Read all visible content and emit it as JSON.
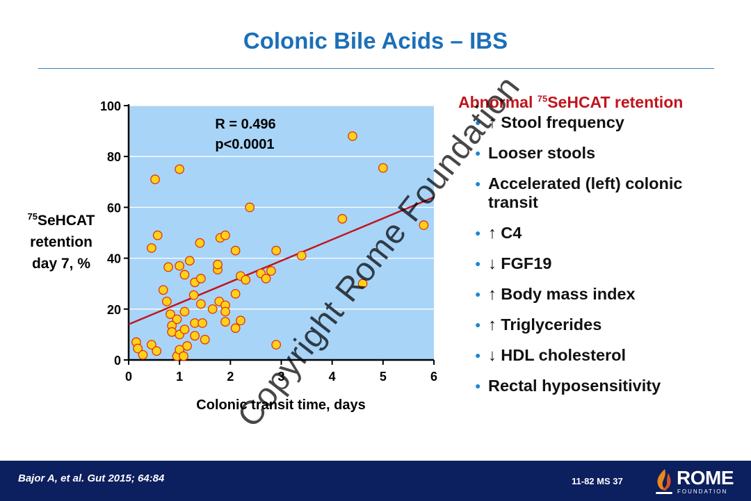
{
  "slide": {
    "title": "Colonic Bile Acids – IBS",
    "side_title_pre": "Abnormal ",
    "side_title_sup": "75",
    "side_title_post": "SeHCAT retention",
    "bullets": [
      "↑ Stool frequency",
      "Looser stools",
      "Accelerated (left) colonic transit",
      "↑ C4",
      "↓ FGF19",
      "↑ Body mass index",
      "↑ Triglycerides",
      "↓ HDL cholesterol",
      "Rectal hyposensitivity"
    ],
    "watermark": "Copyright Rome Foundation",
    "citation": "Bajor A, et al. Gut 2015; 64:84",
    "slide_code": "11-82  MS 37",
    "logo_text": "ROME",
    "logo_subtext": "FOUNDATION"
  },
  "colors": {
    "plot_bg": "#a8d4f7",
    "grid": "#ffffff",
    "point_fill": "#ffd21a",
    "point_stroke": "#e2300c",
    "trend": "#c0151c",
    "title": "#1c6fb8",
    "accent_red": "#c0151c",
    "footer": "#0c1f5e"
  },
  "chart_data": {
    "type": "scatter",
    "xlabel": "Colonic transit time, days",
    "ylabel_sup": "75",
    "ylabel_lines": [
      "SeHCAT",
      "retention",
      "day 7, %"
    ],
    "xlim": [
      0,
      6
    ],
    "ylim": [
      0,
      100
    ],
    "xticks": [
      0,
      1,
      2,
      3,
      4,
      5,
      6
    ],
    "yticks": [
      0,
      20,
      40,
      60,
      80,
      100
    ],
    "grid": "horizontal",
    "annotation_lines": [
      "R = 0.496",
      "p<0.0001"
    ],
    "trendline": [
      [
        0,
        14
      ],
      [
        6,
        64
      ]
    ],
    "points": [
      [
        0.15,
        7
      ],
      [
        0.18,
        4.5
      ],
      [
        0.28,
        2
      ],
      [
        0.45,
        6
      ],
      [
        0.55,
        3.5
      ],
      [
        0.45,
        44
      ],
      [
        0.52,
        71
      ],
      [
        0.57,
        49
      ],
      [
        0.68,
        27.5
      ],
      [
        0.75,
        23
      ],
      [
        0.78,
        36.5
      ],
      [
        0.82,
        18
      ],
      [
        0.85,
        13.5
      ],
      [
        0.85,
        11
      ],
      [
        0.95,
        16
      ],
      [
        0.95,
        1.5
      ],
      [
        1.0,
        75
      ],
      [
        1.0,
        37
      ],
      [
        1.0,
        10
      ],
      [
        1.0,
        4
      ],
      [
        1.08,
        1.5
      ],
      [
        1.1,
        19
      ],
      [
        1.1,
        12
      ],
      [
        1.1,
        33.5
      ],
      [
        1.15,
        5.5
      ],
      [
        1.2,
        39
      ],
      [
        1.28,
        25.5
      ],
      [
        1.3,
        30.5
      ],
      [
        1.3,
        14.5
      ],
      [
        1.3,
        9.5
      ],
      [
        1.4,
        46
      ],
      [
        1.42,
        32
      ],
      [
        1.42,
        22
      ],
      [
        1.45,
        14.5
      ],
      [
        1.5,
        8
      ],
      [
        1.65,
        20
      ],
      [
        1.75,
        35.5
      ],
      [
        1.75,
        37.5
      ],
      [
        1.78,
        23
      ],
      [
        1.8,
        48
      ],
      [
        1.9,
        49
      ],
      [
        1.9,
        21.5
      ],
      [
        1.9,
        19
      ],
      [
        1.9,
        15
      ],
      [
        2.1,
        43
      ],
      [
        2.1,
        26
      ],
      [
        2.1,
        12.5
      ],
      [
        2.2,
        33
      ],
      [
        2.2,
        15.5
      ],
      [
        2.3,
        31.5
      ],
      [
        2.38,
        60
      ],
      [
        2.6,
        34
      ],
      [
        2.7,
        32
      ],
      [
        2.8,
        35
      ],
      [
        2.9,
        43
      ],
      [
        2.9,
        6
      ],
      [
        3.4,
        41
      ],
      [
        4.2,
        55.5
      ],
      [
        4.4,
        88
      ],
      [
        4.6,
        30
      ],
      [
        5.0,
        75.5
      ],
      [
        5.8,
        53
      ]
    ]
  }
}
